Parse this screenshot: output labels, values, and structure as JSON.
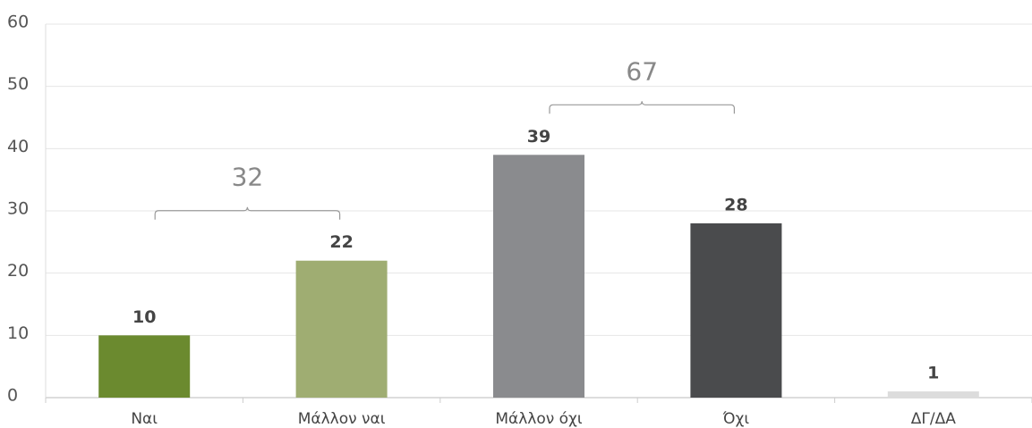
{
  "chart_data": {
    "type": "bar",
    "categories": [
      "Ναι",
      "Μάλλον ναι",
      "Μάλλον όχι",
      "Όχι",
      "ΔΓ/ΔΑ"
    ],
    "values": [
      10,
      22,
      39,
      28,
      1
    ],
    "colors": [
      "#6b8a2f",
      "#9fad72",
      "#8a8b8e",
      "#4a4b4d",
      "#dcdcdc"
    ],
    "ylim": [
      0,
      60
    ],
    "yticks": [
      0,
      10,
      20,
      30,
      40,
      50,
      60
    ],
    "grid": true,
    "annotations": [
      {
        "text": "32",
        "categories": [
          0,
          1
        ]
      },
      {
        "text": "67",
        "categories": [
          2,
          3
        ]
      }
    ]
  }
}
